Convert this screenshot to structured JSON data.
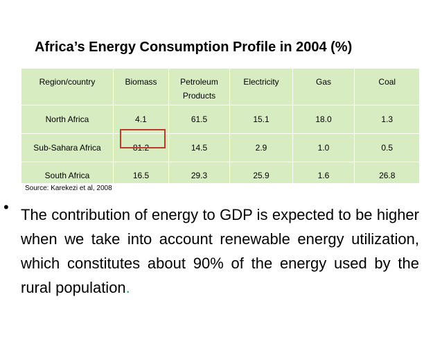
{
  "title": "Africa’s Energy Consumption Profile in 2004 (%)",
  "table": {
    "headers": [
      "Region/country",
      "Biomass",
      "Petroleum Products",
      "Electricity",
      "Gas",
      "Coal"
    ],
    "rows": [
      {
        "region": "North Africa",
        "biomass": "4.1",
        "petroleum": "61.5",
        "electricity": "15.1",
        "gas": "18.0",
        "coal": "1.3"
      },
      {
        "region": "Sub-Sahara Africa",
        "biomass": "81.2",
        "petroleum": "14.5",
        "electricity": "2.9",
        "gas": "1.0",
        "coal": "0.5"
      },
      {
        "region": "South Africa",
        "biomass": "16.5",
        "petroleum": "29.3",
        "electricity": "25.9",
        "gas": "1.6",
        "coal": "26.8"
      }
    ]
  },
  "source": "Source: Karekezi et al, 2008",
  "bullet": {
    "symbol": "•",
    "text": "The contribution of energy to GDP is expected to be higher when we take into account renewable energy utilization, which constitutes about 90% of the energy used by the rural population",
    "end_mark": "."
  },
  "colors": {
    "table_fill": "#d8ecc2",
    "highlight": "#c0392b",
    "period": "#2e9e6a"
  }
}
